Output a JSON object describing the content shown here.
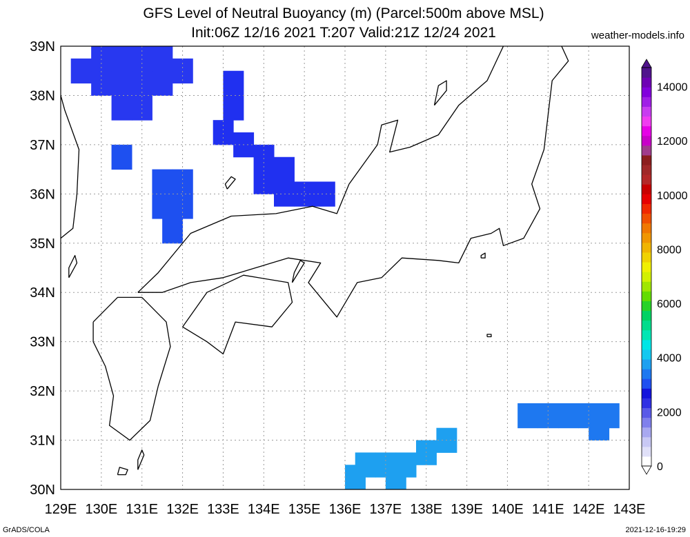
{
  "title_line1": "GFS Level of Neutral Buoyancy (m) (Parcel:500m above MSL)",
  "title_line2": "Init:06Z 12/16 2021 T:207 Valid:21Z 12/24 2021",
  "site": "weather-models.info",
  "footer_left": "GrADS/COLA",
  "footer_right": "2021-12-16-19:29",
  "map": {
    "lon_range": [
      129,
      143
    ],
    "lat_range": [
      30,
      39
    ],
    "lon_labels": [
      "129E",
      "130E",
      "131E",
      "132E",
      "133E",
      "134E",
      "135E",
      "136E",
      "137E",
      "138E",
      "139E",
      "140E",
      "141E",
      "142E",
      "143E"
    ],
    "lat_labels": [
      "30N",
      "31N",
      "32N",
      "33N",
      "34N",
      "35N",
      "36N",
      "37N",
      "38N",
      "39N"
    ],
    "coastline_color": "#000000",
    "grid_color": "#9a9a9a"
  },
  "colorbar": {
    "labels": [
      "0",
      "2000",
      "4000",
      "6000",
      "8000",
      "10000",
      "12000",
      "14000"
    ],
    "colors": [
      "#ffffff",
      "#e0e0f8",
      "#c8c8f4",
      "#a8a8f0",
      "#8080ec",
      "#5a5ae8",
      "#3030e4",
      "#1414dc",
      "#2050f0",
      "#1e78f0",
      "#1ea0f0",
      "#14c8f0",
      "#00e6e6",
      "#00e6b4",
      "#00dc8c",
      "#00d264",
      "#28d228",
      "#64dc00",
      "#a0e600",
      "#d2f000",
      "#f0f000",
      "#f0d200",
      "#f0b400",
      "#f09600",
      "#f07800",
      "#f05000",
      "#f02800",
      "#e60000",
      "#c80000",
      "#b42828",
      "#a02828",
      "#8c1e1e",
      "#a03c8c",
      "#c800c8",
      "#e600e6",
      "#f03cf0",
      "#c83cf0",
      "#a01ee6",
      "#8200dc",
      "#6e00b4",
      "#50148c"
    ]
  },
  "regions": [
    {
      "name": "Sea of Japan north patch",
      "color": "#2838f0",
      "cells": [
        [
          130.0,
          38.25
        ],
        [
          130.5,
          38.25
        ],
        [
          131.0,
          38.25
        ],
        [
          131.5,
          38.25
        ],
        [
          130.5,
          38.75
        ],
        [
          131.0,
          38.75
        ],
        [
          131.5,
          38.75
        ],
        [
          130.0,
          38.75
        ],
        [
          129.5,
          38.5
        ],
        [
          130.5,
          37.75
        ],
        [
          131.0,
          37.75
        ],
        [
          132.0,
          38.5
        ]
      ]
    },
    {
      "name": "Sea of Japan central band",
      "color": "#2030f0",
      "cells": [
        [
          133.25,
          38.25
        ],
        [
          133.25,
          37.75
        ],
        [
          133.0,
          37.25
        ],
        [
          133.5,
          37.0
        ],
        [
          134.0,
          36.75
        ],
        [
          134.5,
          36.5
        ],
        [
          134.0,
          36.25
        ],
        [
          135.0,
          36.0
        ],
        [
          135.5,
          36.0
        ],
        [
          134.5,
          36.0
        ]
      ]
    },
    {
      "name": "Oki region patch",
      "color": "#1e50f0",
      "cells": [
        [
          130.5,
          36.75
        ],
        [
          131.5,
          36.25
        ],
        [
          132.0,
          36.25
        ],
        [
          131.5,
          35.75
        ],
        [
          132.0,
          35.75
        ],
        [
          131.75,
          35.25
        ]
      ]
    },
    {
      "name": "Southern offshore band",
      "color": "#1ea0f0",
      "cells": [
        [
          136.5,
          30.5
        ],
        [
          137.0,
          30.5
        ],
        [
          137.5,
          30.5
        ],
        [
          138.0,
          30.75
        ],
        [
          138.5,
          31.0
        ],
        [
          136.25,
          30.25
        ],
        [
          137.25,
          30.25
        ]
      ]
    },
    {
      "name": "Southeast band",
      "color": "#1e78f0",
      "cells": [
        [
          140.5,
          31.5
        ],
        [
          141.0,
          31.5
        ],
        [
          141.5,
          31.5
        ],
        [
          142.0,
          31.5
        ],
        [
          142.5,
          31.5
        ],
        [
          142.25,
          31.25
        ]
      ]
    }
  ]
}
